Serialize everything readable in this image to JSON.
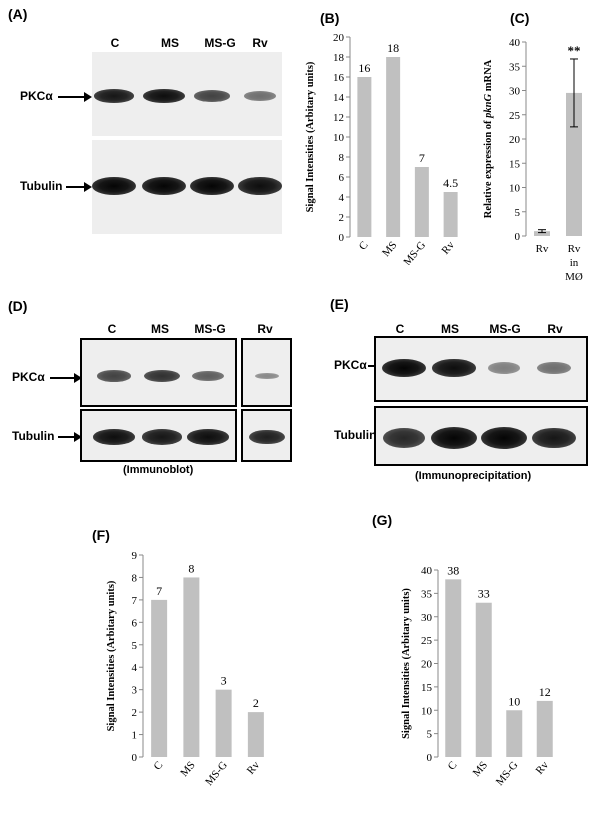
{
  "panels": {
    "A": {
      "label": "(A)",
      "lanes": [
        "C",
        "MS",
        "MS-G",
        "Rv"
      ],
      "rows": [
        "PKCα",
        "Tubulin"
      ],
      "pkc_intensity": [
        0.9,
        0.95,
        0.65,
        0.4
      ],
      "tub_intensity": [
        1,
        1,
        1,
        0.95
      ]
    },
    "D": {
      "label": "(D)",
      "lanes": [
        "C",
        "MS",
        "MS-G",
        "Rv"
      ],
      "rows": [
        "PKCα",
        "Tubulin"
      ],
      "caption": "(Immunoblot)",
      "pkc_intensity": [
        0.65,
        0.75,
        0.5,
        0.25
      ],
      "tub_intensity": [
        0.95,
        0.9,
        0.95,
        0.85
      ]
    },
    "E": {
      "label": "(E)",
      "lanes": [
        "C",
        "MS",
        "MS-G",
        "Rv"
      ],
      "rows": [
        "PKCα",
        "Tubulin"
      ],
      "caption": "(Immunoprecipitation)",
      "pkc_intensity": [
        1,
        0.95,
        0.3,
        0.4
      ],
      "tub_intensity": [
        0.8,
        1,
        1,
        0.9
      ]
    }
  },
  "chart_data": [
    {
      "panel": "(B)",
      "type": "bar",
      "categories": [
        "C",
        "MS",
        "MS-G",
        "Rv"
      ],
      "values": [
        16,
        18,
        7,
        4.5
      ],
      "data_labels": [
        "16",
        "18",
        "7",
        "4.5"
      ],
      "ylabel": "Signal Intensities (Arbitary units)",
      "ylim": [
        0,
        20
      ],
      "yticks": [
        "0",
        "2",
        "4",
        "6",
        "8",
        "10",
        "12",
        "14",
        "16",
        "18",
        "20"
      ],
      "bar_color": "#c0c0c0"
    },
    {
      "panel": "(C)",
      "type": "bar",
      "categories": [
        "Rv",
        "Rv in MØ"
      ],
      "values": [
        1,
        29.5
      ],
      "error": [
        0.3,
        7
      ],
      "annotation": "**",
      "ylabel_prefix": "Relative expression of ",
      "ylabel_italic": "pknG",
      "ylabel_suffix": " mRNA",
      "ylim": [
        0,
        40
      ],
      "yticks": [
        "0",
        "5",
        "10",
        "15",
        "20",
        "25",
        "30",
        "35",
        "40"
      ],
      "bar_color": "#c0c0c0"
    },
    {
      "panel": "(F)",
      "type": "bar",
      "categories": [
        "C",
        "MS",
        "MS-G",
        "Rv"
      ],
      "values": [
        7,
        8,
        3,
        2
      ],
      "data_labels": [
        "7",
        "8",
        "3",
        "2"
      ],
      "ylabel": "Signal Intensities (Arbitary units)",
      "ylim": [
        0,
        9
      ],
      "yticks": [
        "0",
        "1",
        "2",
        "3",
        "4",
        "5",
        "6",
        "7",
        "8",
        "9"
      ],
      "bar_color": "#c0c0c0"
    },
    {
      "panel": "(G)",
      "type": "bar",
      "categories": [
        "C",
        "MS",
        "MS-G",
        "Rv"
      ],
      "values": [
        38,
        33,
        10,
        12
      ],
      "data_labels": [
        "38",
        "33",
        "10",
        "12"
      ],
      "ylabel": "Signal Intensities (Arbitary units)",
      "ylim": [
        0,
        40
      ],
      "yticks": [
        "0",
        "5",
        "10",
        "15",
        "20",
        "25",
        "30",
        "35",
        "40"
      ],
      "bar_color": "#c0c0c0"
    }
  ]
}
